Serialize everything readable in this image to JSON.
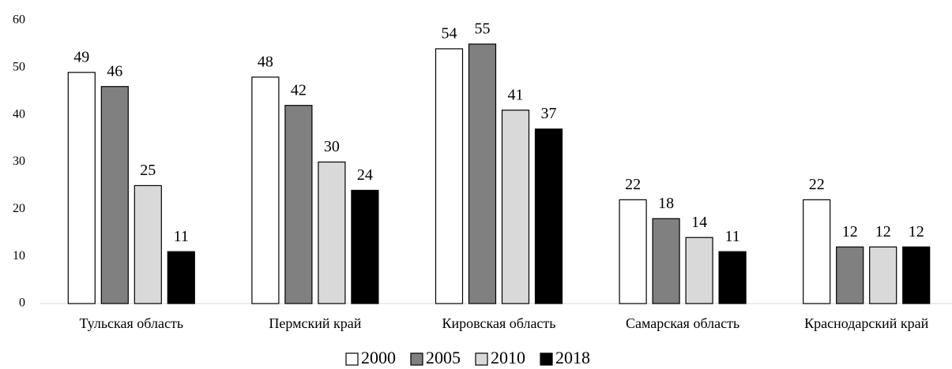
{
  "chart_data": {
    "type": "bar",
    "categories": [
      "Тульская область",
      "Пермский край",
      "Кировская область",
      "Самарская область",
      "Краснодарский край"
    ],
    "series": [
      {
        "name": "2000",
        "color": "#ffffff",
        "values": [
          49,
          48,
          54,
          22,
          22
        ]
      },
      {
        "name": "2005",
        "color": "#808080",
        "values": [
          46,
          42,
          55,
          18,
          12
        ]
      },
      {
        "name": "2010",
        "color": "#d9d9d9",
        "values": [
          25,
          30,
          41,
          14,
          12
        ]
      },
      {
        "name": "2018",
        "color": "#000000",
        "values": [
          11,
          24,
          37,
          11,
          12
        ]
      }
    ],
    "ylim": [
      0,
      60
    ],
    "yticks": [
      0,
      10,
      20,
      30,
      40,
      50,
      60
    ],
    "grid": false,
    "legend": "bottom"
  }
}
